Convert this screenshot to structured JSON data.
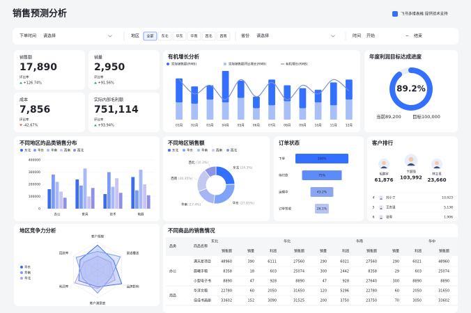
{
  "header": {
    "title": "销售预测分析",
    "brand": "飞书多维表格 提供技术支持"
  },
  "filters": {
    "order_time": {
      "label": "下单时间",
      "placeholder": "请选择"
    },
    "region": {
      "label": "地区",
      "options": [
        "全部",
        "东北",
        "华东",
        "华南",
        "西北",
        "西南"
      ]
    },
    "province": {
      "label": "省份",
      "placeholder": "请选择"
    },
    "date": {
      "label": "时间",
      "start": "开始",
      "separator": "~",
      "end": "结束"
    }
  },
  "kpis": [
    {
      "label": "销售额",
      "value": "17,890",
      "change_label": "环比率",
      "change": "+126.74%",
      "color": "#2ba471"
    },
    {
      "label": "销量",
      "value": "2,950",
      "change_label": "环比率",
      "change": "+91.56%",
      "color": "#2ba471"
    },
    {
      "label": "成本",
      "value": "7,856",
      "change_label": "环比率",
      "change": "-42.67%",
      "color": "#f54a45"
    },
    {
      "label": "实际内部毛利额",
      "value": "751,114",
      "change_label": "环比率",
      "change": "+93.94%",
      "color": "#2ba471"
    }
  ],
  "chart_data": [
    {
      "type": "combo",
      "title": "有机增长分析",
      "categories": [
        "01月",
        "02月",
        "03月",
        "04月",
        "05月",
        "06月",
        "07月",
        "08月",
        "09月",
        "10月",
        "11月",
        "12月"
      ],
      "series": [
        {
          "name": "实际销售额(RMB)",
          "type": "bar",
          "color": "#3370ff",
          "values": [
            42,
            30,
            25,
            55,
            30,
            20,
            45,
            28,
            35,
            22,
            40,
            35
          ]
        },
        {
          "name": "实际销售额环比增长(RMB)",
          "type": "bar",
          "color": "#a9bff8",
          "values": [
            30,
            28,
            35,
            30,
            38,
            20,
            25,
            32,
            20,
            30,
            25,
            35
          ]
        },
        {
          "name": "有机增长(RMB)",
          "type": "line",
          "color": "#7b8fd6",
          "values": [
            70,
            45,
            60,
            35,
            70,
            40,
            65,
            35,
            60,
            45,
            70,
            50
          ]
        }
      ]
    },
    {
      "type": "gauge",
      "title": "年度利润目标达成进度",
      "value": 89.2,
      "value_label": "89.2%",
      "color": "#3370ff",
      "current_label": "当前",
      "current": "89,200",
      "target_label": "目标",
      "target": "100,000"
    },
    {
      "type": "bar",
      "title": "不同地区的品类销售分布",
      "categories": [
        "办公",
        "家具",
        "技术",
        "电器"
      ],
      "series": [
        {
          "name": "东北",
          "color": "#3c6df0",
          "values": [
            160000,
            240000,
            120000,
            260000
          ]
        },
        {
          "name": "华东",
          "color": "#7b9cf5",
          "values": [
            280000,
            190000,
            300000,
            150000
          ]
        },
        {
          "name": "华南",
          "color": "#a9b8f7",
          "values": [
            220000,
            330000,
            180000,
            320000
          ]
        },
        {
          "name": "西南",
          "color": "#c9c5f2",
          "values": [
            140000,
            100000,
            250000,
            200000
          ]
        },
        {
          "name": "西北",
          "color": "#8d8fe8",
          "values": [
            90000,
            170000,
            130000,
            110000
          ]
        }
      ],
      "ylim": [
        0,
        400000
      ],
      "yticks": [
        0,
        100000,
        200000,
        300000,
        400000
      ],
      "grid": true
    },
    {
      "type": "pie",
      "title": "不同地区销售额",
      "categories": [
        "东北",
        "华东",
        "华南",
        "西南",
        "西北"
      ],
      "values": [
        24.3,
        27.65,
        17.4,
        20.35,
        10.3
      ],
      "value_labels": [
        "(24.3%)",
        "(27.65%)",
        "(17.4%)",
        "(20.35%)",
        "(10.3%)"
      ],
      "colors": [
        "#3370ff",
        "#7fa3f8",
        "#a6b6f5",
        "#c3c8ef",
        "#8c95e6"
      ]
    },
    {
      "type": "funnel",
      "title": "订单状态",
      "categories": [
        "下单",
        "待付款",
        "运输中",
        "订单签收"
      ],
      "values": [
        100,
        75,
        43.2,
        26.1
      ],
      "value_labels": [
        "100%",
        "75%",
        "43.2%",
        "26.1%"
      ],
      "colors": [
        "#3370ff",
        "#5d8bf7",
        "#8aa6f3",
        "#b6c2f1"
      ]
    },
    {
      "type": "radar",
      "title": "地区竞争力分析",
      "categories": [
        "客户规模",
        "渠道覆盖",
        "品牌影响",
        "客户满意度",
        "利润率",
        "回款率"
      ],
      "series": [
        {
          "name": "华东",
          "color": "#3c6df0",
          "values": [
            80,
            60,
            90,
            55,
            70,
            65
          ]
        },
        {
          "name": "华南",
          "color": "#7b9cf5",
          "values": [
            60,
            85,
            50,
            75,
            55,
            80
          ]
        },
        {
          "name": "华北",
          "color": "#a9a3ee",
          "values": [
            45,
            50,
            65,
            60,
            85,
            50
          ]
        }
      ]
    }
  ],
  "customers": {
    "title": "客户排行",
    "top": [
      {
        "name": "毛鹏宇",
        "value": "61,876"
      },
      {
        "name": "卞国强",
        "value": "103,992"
      },
      {
        "name": "林立青",
        "value": "23,660"
      }
    ],
    "list": [
      {
        "rank": 4,
        "name": "刘小丁",
        "value": "10,923"
      },
      {
        "rank": 5,
        "name": "王志强",
        "value": "5,138"
      },
      {
        "rank": 6,
        "name": "张雪",
        "value": "1,906"
      }
    ]
  },
  "table": {
    "title": "不同商品的销售情况",
    "columns": [
      "品类",
      "商品名称"
    ],
    "regions": [
      "东北",
      "华北",
      "华南",
      "华中"
    ],
    "metrics": [
      "销售额",
      "销量",
      "利润"
    ],
    "groups": [
      {
        "name": "办公",
        "rows": [
          {
            "name": "满天星项目",
            "values": [
              48960,
              390,
              6111,
              27560,
              290,
              6021,
              27560,
              290,
              6021,
              48960,
              390,
              6111
            ]
          },
          {
            "name": "晨曦手稿",
            "values": [
              8358,
              18,
              603,
              25074,
              300,
              2442,
              8358,
              29,
              603,
              25074,
              300,
              2442
            ]
          },
          {
            "name": "小型电子书",
            "values": [
              8890,
              47,
              928,
              8890,
              47,
              928,
              27640,
              300,
              8890,
              8890,
              47,
              928
            ]
          }
        ]
      },
      {
        "name": "用品",
        "rows": [
          {
            "name": "华浮文稿",
            "values": [
              22780,
              60,
              2050,
              31650,
              120,
              5296,
              22780,
              60,
              2050,
              31650,
              120,
              5296
            ]
          },
          {
            "name": "佳佳书画册",
            "values": [
              33602,
              152,
              3090,
              31525,
              200,
              3750,
              23750,
              70,
              3050,
              33602,
              152,
              3090
            ]
          }
        ]
      }
    ]
  }
}
